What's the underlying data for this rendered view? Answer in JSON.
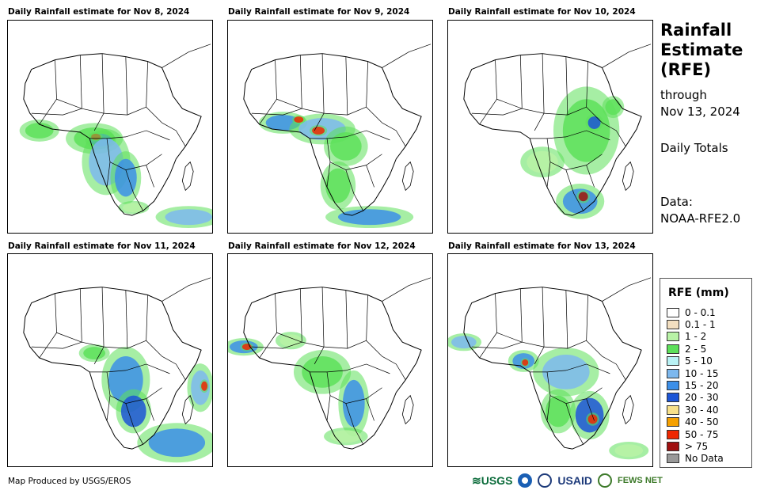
{
  "panels": [
    {
      "title": "Daily Rainfall estimate for Nov 8, 2024"
    },
    {
      "title": "Daily Rainfall estimate for Nov 9, 2024"
    },
    {
      "title": "Daily Rainfall estimate for Nov 10, 2024"
    },
    {
      "title": "Daily Rainfall estimate for Nov 11, 2024"
    },
    {
      "title": "Daily Rainfall estimate for Nov 12, 2024"
    },
    {
      "title": "Daily Rainfall estimate for Nov 13, 2024"
    }
  ],
  "sidebar": {
    "title_line1": "Rainfall",
    "title_line2": "Estimate",
    "title_line3": "(RFE)",
    "through": "through",
    "date": "Nov 13, 2024",
    "totals": "Daily Totals",
    "data_label": "Data:",
    "data_source": "NOAA-RFE2.0"
  },
  "legend": {
    "title": "RFE (mm)",
    "items": [
      {
        "label": "0 - 0.1",
        "color": "#ffffff"
      },
      {
        "label": "0.1 - 1",
        "color": "#f3dfc0"
      },
      {
        "label": "1 - 2",
        "color": "#b8f2a6"
      },
      {
        "label": "2 - 5",
        "color": "#5de05a"
      },
      {
        "label": "5 - 10",
        "color": "#b9f2f5"
      },
      {
        "label": "10 - 15",
        "color": "#7db8ee"
      },
      {
        "label": "15 - 20",
        "color": "#3c8fe8"
      },
      {
        "label": "20 - 30",
        "color": "#1c55d6"
      },
      {
        "label": "30 - 40",
        "color": "#f7e08a"
      },
      {
        "label": "40 - 50",
        "color": "#f5a000"
      },
      {
        "label": "50 - 75",
        "color": "#ee2800"
      },
      {
        "label": "> 75",
        "color": "#a01010"
      },
      {
        "label": "No Data",
        "color": "#999999"
      }
    ]
  },
  "footer": {
    "credit": "Map Produced by USGS/EROS"
  },
  "logos": {
    "usgs": "USGS",
    "usaid": "USAID",
    "fews": "FEWS NET"
  }
}
